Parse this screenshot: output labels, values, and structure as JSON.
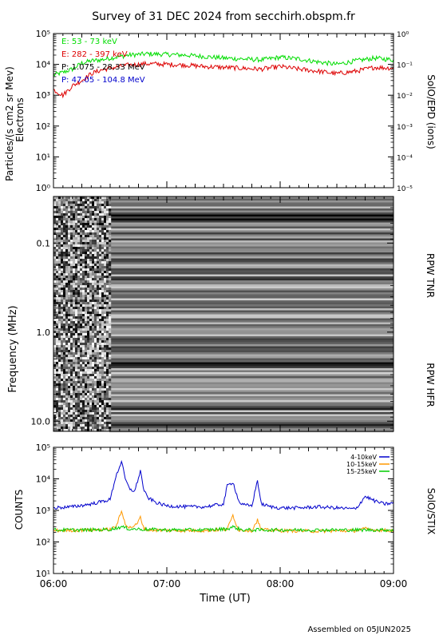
{
  "page": {
    "title": "Survey of 31 DEC 2024 from secchirh.obspm.fr",
    "footer": "Assembled on 05JUN2025"
  },
  "chart_data": [
    {
      "type": "line",
      "panel": "epd",
      "ylabel": "Particles/(s cm2 sr Mev)",
      "ylabel2": "Electrons",
      "right_label": "SolO/EPD (ions)",
      "yscale": "log",
      "ylim": [
        1,
        100000
      ],
      "yticks": [
        "10⁰",
        "10¹",
        "10²",
        "10³",
        "10⁴",
        "10⁵"
      ],
      "y2lim": [
        1e-05,
        1
      ],
      "y2ticks": [
        "10⁻⁵",
        "10⁻⁴",
        "10⁻³",
        "10⁻²",
        "10⁻¹",
        "10⁰"
      ],
      "xlim": [
        "06:00",
        "09:00"
      ],
      "grid": false,
      "legend_placement": "top-left",
      "series": [
        {
          "name": "E: 53 - 73 keV",
          "color": "#00dd00",
          "x": [
            "06:00",
            "06:05",
            "06:10",
            "06:15",
            "06:20",
            "06:25",
            "06:30",
            "06:35",
            "06:40",
            "06:50",
            "07:00",
            "07:10",
            "07:20",
            "07:30",
            "07:40",
            "07:50",
            "08:00",
            "08:10",
            "08:20",
            "08:30",
            "08:40",
            "08:50",
            "09:00"
          ],
          "y": [
            4500,
            5500,
            7000,
            11000,
            13000,
            14000,
            16000,
            18000,
            20000,
            22000,
            21000,
            20000,
            18000,
            16000,
            15000,
            14000,
            17000,
            15000,
            12000,
            10000,
            13000,
            16000,
            14000
          ]
        },
        {
          "name": "E: 282 - 397 keV",
          "color": "#dd0000",
          "x": [
            "06:00",
            "06:05",
            "06:10",
            "06:15",
            "06:20",
            "06:25",
            "06:30",
            "06:35",
            "06:40",
            "06:50",
            "07:00",
            "07:10",
            "07:20",
            "07:30",
            "07:40",
            "07:50",
            "08:00",
            "08:10",
            "08:20",
            "08:30",
            "08:40",
            "08:50",
            "09:00"
          ],
          "y": [
            1500,
            1000,
            2000,
            3000,
            5000,
            6500,
            7500,
            8500,
            9500,
            10500,
            10000,
            9500,
            8500,
            8000,
            7500,
            7000,
            8500,
            7000,
            6000,
            5000,
            6000,
            8000,
            7500
          ]
        },
        {
          "name": "P: 1.075 - 28.33 MeV",
          "color": "#000000",
          "x": [
            "06:00",
            "09:00"
          ],
          "y": [
            null,
            null
          ]
        },
        {
          "name": "P: 47.05 - 104.8 MeV",
          "color": "#0000cc",
          "x": [
            "06:00",
            "09:00"
          ],
          "y": [
            null,
            null
          ]
        }
      ]
    },
    {
      "type": "heatmap",
      "panel": "rpw",
      "ylabel": "Frequency (MHz)",
      "yscale": "log",
      "ylim": [
        0.03,
        13
      ],
      "inverted": true,
      "yticks": [
        "0.1",
        "1.0",
        "10.0"
      ],
      "right_labels": [
        "RPW TNR",
        "RPW HFR"
      ],
      "xlim": [
        "06:00",
        "09:00"
      ]
    },
    {
      "type": "line",
      "panel": "stix",
      "ylabel": "COUNTS",
      "right_label": "SolO/STIX",
      "yscale": "log",
      "ylim": [
        10,
        100000
      ],
      "yticks": [
        "10¹",
        "10²",
        "10³",
        "10⁴",
        "10⁵"
      ],
      "xlim": [
        "06:00",
        "09:00"
      ],
      "xticks": [
        "06:00",
        "07:00",
        "08:00",
        "09:00"
      ],
      "xlabel": "Time (UT)",
      "legend_placement": "top-right",
      "series": [
        {
          "name": "4-10keV",
          "color": "#0000cc",
          "x": [
            "06:00",
            "06:10",
            "06:20",
            "06:30",
            "06:33",
            "06:36",
            "06:38",
            "06:40",
            "06:43",
            "06:46",
            "06:48",
            "06:50",
            "06:55",
            "07:00",
            "07:10",
            "07:20",
            "07:30",
            "07:32",
            "07:35",
            "07:38",
            "07:40",
            "07:45",
            "07:48",
            "07:50",
            "07:55",
            "08:00",
            "08:10",
            "08:20",
            "08:30",
            "08:40",
            "08:45",
            "08:50",
            "08:55",
            "09:00"
          ],
          "y": [
            1200,
            1300,
            1600,
            2200,
            12000,
            35000,
            10000,
            5000,
            4000,
            18000,
            4000,
            2500,
            1700,
            1400,
            1300,
            1300,
            1600,
            6000,
            8000,
            2000,
            1500,
            1400,
            9000,
            1600,
            1300,
            1200,
            1200,
            1300,
            1200,
            1100,
            2800,
            2000,
            1600,
            1700
          ]
        },
        {
          "name": "10-15keV",
          "color": "#ff9900",
          "x": [
            "06:00",
            "06:20",
            "06:30",
            "06:33",
            "06:36",
            "06:38",
            "06:40",
            "06:44",
            "06:46",
            "06:48",
            "06:50",
            "07:00",
            "07:20",
            "07:32",
            "07:35",
            "07:38",
            "07:45",
            "07:48",
            "07:50",
            "08:00",
            "08:20",
            "08:40",
            "08:45",
            "08:50",
            "09:00"
          ],
          "y": [
            230,
            240,
            250,
            300,
            900,
            400,
            280,
            350,
            600,
            260,
            240,
            230,
            230,
            250,
            700,
            240,
            230,
            500,
            240,
            230,
            220,
            230,
            260,
            240,
            230
          ]
        },
        {
          "name": "15-25keV",
          "color": "#00cc00",
          "x": [
            "06:00",
            "06:20",
            "06:30",
            "06:36",
            "06:40",
            "06:50",
            "07:00",
            "07:20",
            "07:32",
            "07:35",
            "07:40",
            "08:00",
            "08:20",
            "08:40",
            "09:00"
          ],
          "y": [
            240,
            240,
            250,
            300,
            260,
            250,
            240,
            240,
            260,
            300,
            240,
            240,
            240,
            240,
            240
          ]
        }
      ]
    }
  ]
}
